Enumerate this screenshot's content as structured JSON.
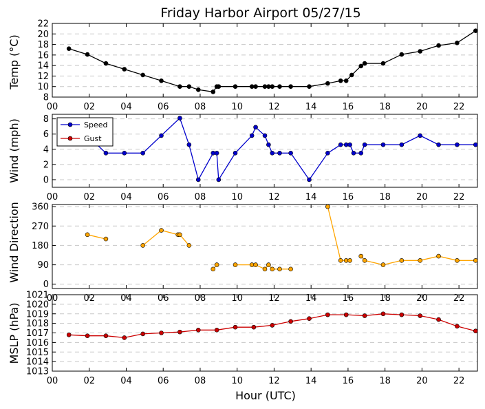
{
  "title": "Friday Harbor Airport 05/27/15",
  "xlabel": "Hour (UTC)",
  "x_ticks": [
    "00",
    "02",
    "04",
    "06",
    "08",
    "10",
    "12",
    "14",
    "16",
    "18",
    "20",
    "22"
  ],
  "chart_data": [
    {
      "type": "line",
      "ylabel": "Temp ($^\\circ$C)",
      "ylabel_display": "Temp (°C)",
      "ylim": [
        8,
        22
      ],
      "yticks": [
        "8",
        "10",
        "12",
        "14",
        "16",
        "18",
        "20",
        "22"
      ],
      "series": [
        {
          "color": "#000000",
          "points": [
            [
              0.9,
              17.2
            ],
            [
              1.9,
              16.1
            ],
            [
              2.9,
              14.4
            ],
            [
              3.9,
              13.3
            ],
            [
              4.9,
              12.2
            ],
            [
              5.9,
              11.1
            ],
            [
              6.9,
              10.0
            ],
            [
              7.4,
              10.0
            ],
            [
              7.9,
              9.4
            ],
            [
              8.7,
              9.0
            ],
            [
              8.9,
              10.0
            ],
            [
              9.0,
              10.0
            ],
            [
              9.9,
              10.0
            ],
            [
              10.8,
              10.0
            ],
            [
              11.0,
              10.0
            ],
            [
              11.5,
              10.0
            ],
            [
              11.7,
              10.0
            ],
            [
              11.9,
              10.0
            ],
            [
              12.3,
              10.0
            ],
            [
              12.9,
              10.0
            ],
            [
              13.9,
              10.0
            ],
            [
              14.9,
              10.6
            ],
            [
              15.6,
              11.1
            ],
            [
              15.9,
              11.1
            ],
            [
              16.2,
              12.2
            ],
            [
              16.7,
              13.9
            ],
            [
              16.9,
              14.4
            ],
            [
              17.9,
              14.4
            ],
            [
              18.9,
              16.1
            ],
            [
              19.9,
              16.7
            ],
            [
              20.9,
              17.8
            ],
            [
              21.9,
              18.3
            ],
            [
              22.9,
              20.6
            ]
          ]
        }
      ]
    },
    {
      "type": "line",
      "ylabel": "Wind (mph)",
      "ylim": [
        -1,
        8.6
      ],
      "yticks": [
        "0",
        "2",
        "4",
        "6",
        "8"
      ],
      "legend": {
        "placement": "top-left",
        "entries": [
          "Speed",
          "Gust"
        ]
      },
      "series": [
        {
          "name": "Speed",
          "color": "#0000cc",
          "points": [
            [
              0.9,
              5.8
            ],
            [
              1.9,
              5.8
            ],
            [
              2.9,
              3.5
            ],
            [
              3.9,
              3.5
            ],
            [
              4.9,
              3.5
            ],
            [
              5.9,
              5.8
            ],
            [
              6.9,
              8.1
            ],
            [
              7.4,
              4.6
            ],
            [
              7.9,
              0
            ],
            [
              8.7,
              3.5
            ],
            [
              8.9,
              3.5
            ],
            [
              9.0,
              0
            ],
            [
              9.9,
              3.5
            ],
            [
              10.8,
              5.8
            ],
            [
              11.0,
              6.9
            ],
            [
              11.5,
              5.8
            ],
            [
              11.7,
              4.6
            ],
            [
              11.9,
              3.5
            ],
            [
              12.3,
              3.5
            ],
            [
              12.9,
              3.5
            ],
            [
              13.9,
              0
            ],
            [
              14.9,
              3.5
            ],
            [
              15.6,
              4.6
            ],
            [
              15.9,
              4.6
            ],
            [
              16.1,
              4.6
            ],
            [
              16.3,
              3.5
            ],
            [
              16.7,
              3.5
            ],
            [
              16.9,
              4.6
            ],
            [
              17.9,
              4.6
            ],
            [
              18.9,
              4.6
            ],
            [
              19.9,
              5.8
            ],
            [
              20.9,
              4.6
            ],
            [
              21.9,
              4.6
            ],
            [
              22.9,
              4.6
            ]
          ]
        },
        {
          "name": "Gust",
          "color": "#cc0000",
          "points": []
        }
      ]
    },
    {
      "type": "line",
      "ylabel": "Wind Direction",
      "ylim": [
        -20,
        370
      ],
      "yticks": [
        "0",
        "90",
        "180",
        "270",
        "360"
      ],
      "series": [
        {
          "color": "#ffa500",
          "segments": [
            [
              [
                1.9,
                230
              ],
              [
                2.9,
                210
              ]
            ],
            [
              [
                4.9,
                180
              ],
              [
                5.9,
                250
              ],
              [
                6.8,
                230
              ],
              [
                6.9,
                230
              ],
              [
                7.4,
                180
              ]
            ],
            [
              [
                8.7,
                70
              ],
              [
                8.9,
                90
              ]
            ],
            [
              [
                9.9,
                90
              ],
              [
                10.8,
                90
              ],
              [
                11.0,
                90
              ],
              [
                11.5,
                70
              ],
              [
                11.7,
                90
              ],
              [
                11.9,
                70
              ],
              [
                12.3,
                70
              ],
              [
                12.9,
                70
              ]
            ],
            [
              [
                14.9,
                360
              ],
              [
                15.6,
                110
              ],
              [
                15.9,
                110
              ],
              [
                16.1,
                110
              ]
            ],
            [
              [
                16.7,
                130
              ],
              [
                16.9,
                110
              ],
              [
                17.9,
                90
              ],
              [
                18.9,
                110
              ],
              [
                19.9,
                110
              ],
              [
                20.9,
                130
              ],
              [
                21.9,
                110
              ],
              [
                22.9,
                110
              ]
            ]
          ]
        }
      ]
    },
    {
      "type": "line",
      "ylabel": "MSLP (hPa)",
      "ylim": [
        1013,
        1021
      ],
      "yticks": [
        "1013",
        "1014",
        "1015",
        "1016",
        "1017",
        "1018",
        "1019",
        "1020",
        "1021"
      ],
      "series": [
        {
          "color": "#cc0000",
          "points": [
            [
              0.9,
              1016.8
            ],
            [
              1.9,
              1016.7
            ],
            [
              2.9,
              1016.7
            ],
            [
              3.9,
              1016.5
            ],
            [
              4.9,
              1016.9
            ],
            [
              5.9,
              1017.0
            ],
            [
              6.9,
              1017.1
            ],
            [
              7.9,
              1017.3
            ],
            [
              8.9,
              1017.3
            ],
            [
              9.9,
              1017.6
            ],
            [
              10.9,
              1017.6
            ],
            [
              11.9,
              1017.8
            ],
            [
              12.9,
              1018.2
            ],
            [
              13.9,
              1018.5
            ],
            [
              14.9,
              1018.9
            ],
            [
              15.9,
              1018.9
            ],
            [
              16.9,
              1018.8
            ],
            [
              17.9,
              1019.0
            ],
            [
              18.9,
              1018.9
            ],
            [
              19.9,
              1018.8
            ],
            [
              20.9,
              1018.4
            ],
            [
              21.9,
              1017.7
            ],
            [
              22.9,
              1017.2
            ]
          ]
        }
      ]
    }
  ]
}
